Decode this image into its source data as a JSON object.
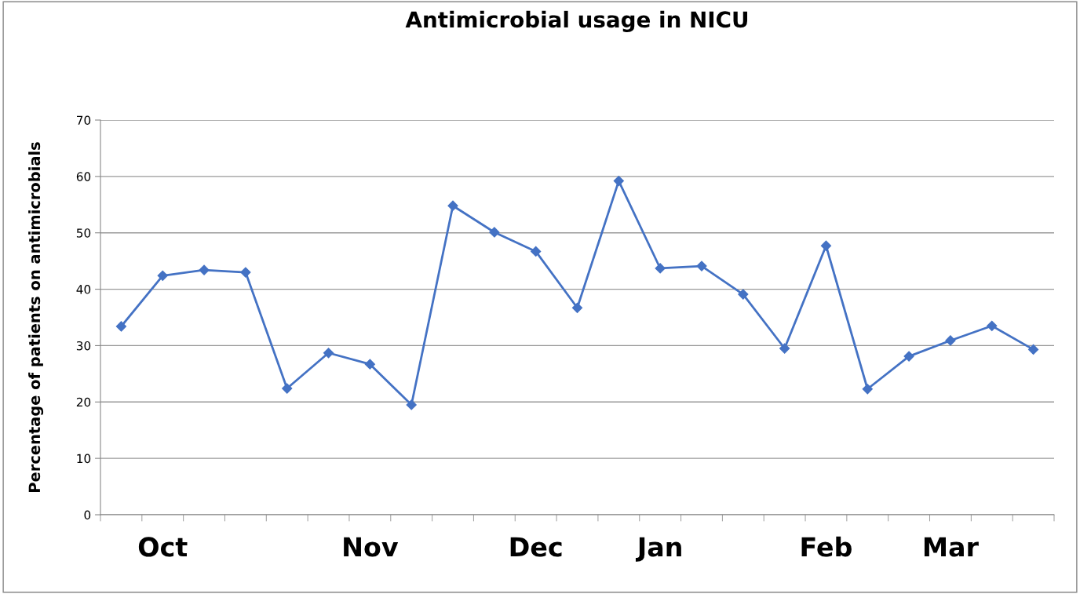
{
  "chart_data": {
    "type": "line",
    "title": "Antimicrobial usage in NICU",
    "ylabel": "Percentage of patients on antimicrobials",
    "categories": [
      null,
      "Oct",
      null,
      null,
      null,
      null,
      "Nov",
      null,
      null,
      null,
      "Dec",
      null,
      null,
      "Jan",
      null,
      null,
      null,
      "Feb",
      null,
      null,
      "Mar",
      null,
      null
    ],
    "series": [
      {
        "color": "#4472c4",
        "values": [
          33.4,
          42.4,
          43.4,
          43.0,
          22.4,
          28.7,
          26.7,
          19.5,
          54.8,
          50.1,
          46.7,
          36.7,
          59.2,
          43.7,
          44.1,
          39.1,
          29.5,
          47.7,
          22.3,
          28.1,
          30.9,
          33.5,
          29.3
        ]
      }
    ],
    "ylim": [
      0,
      70
    ],
    "yticks": [
      0,
      10,
      20,
      30,
      40,
      50,
      60,
      70
    ],
    "grid": "y",
    "marker": "diamond",
    "line_style": "solid"
  }
}
